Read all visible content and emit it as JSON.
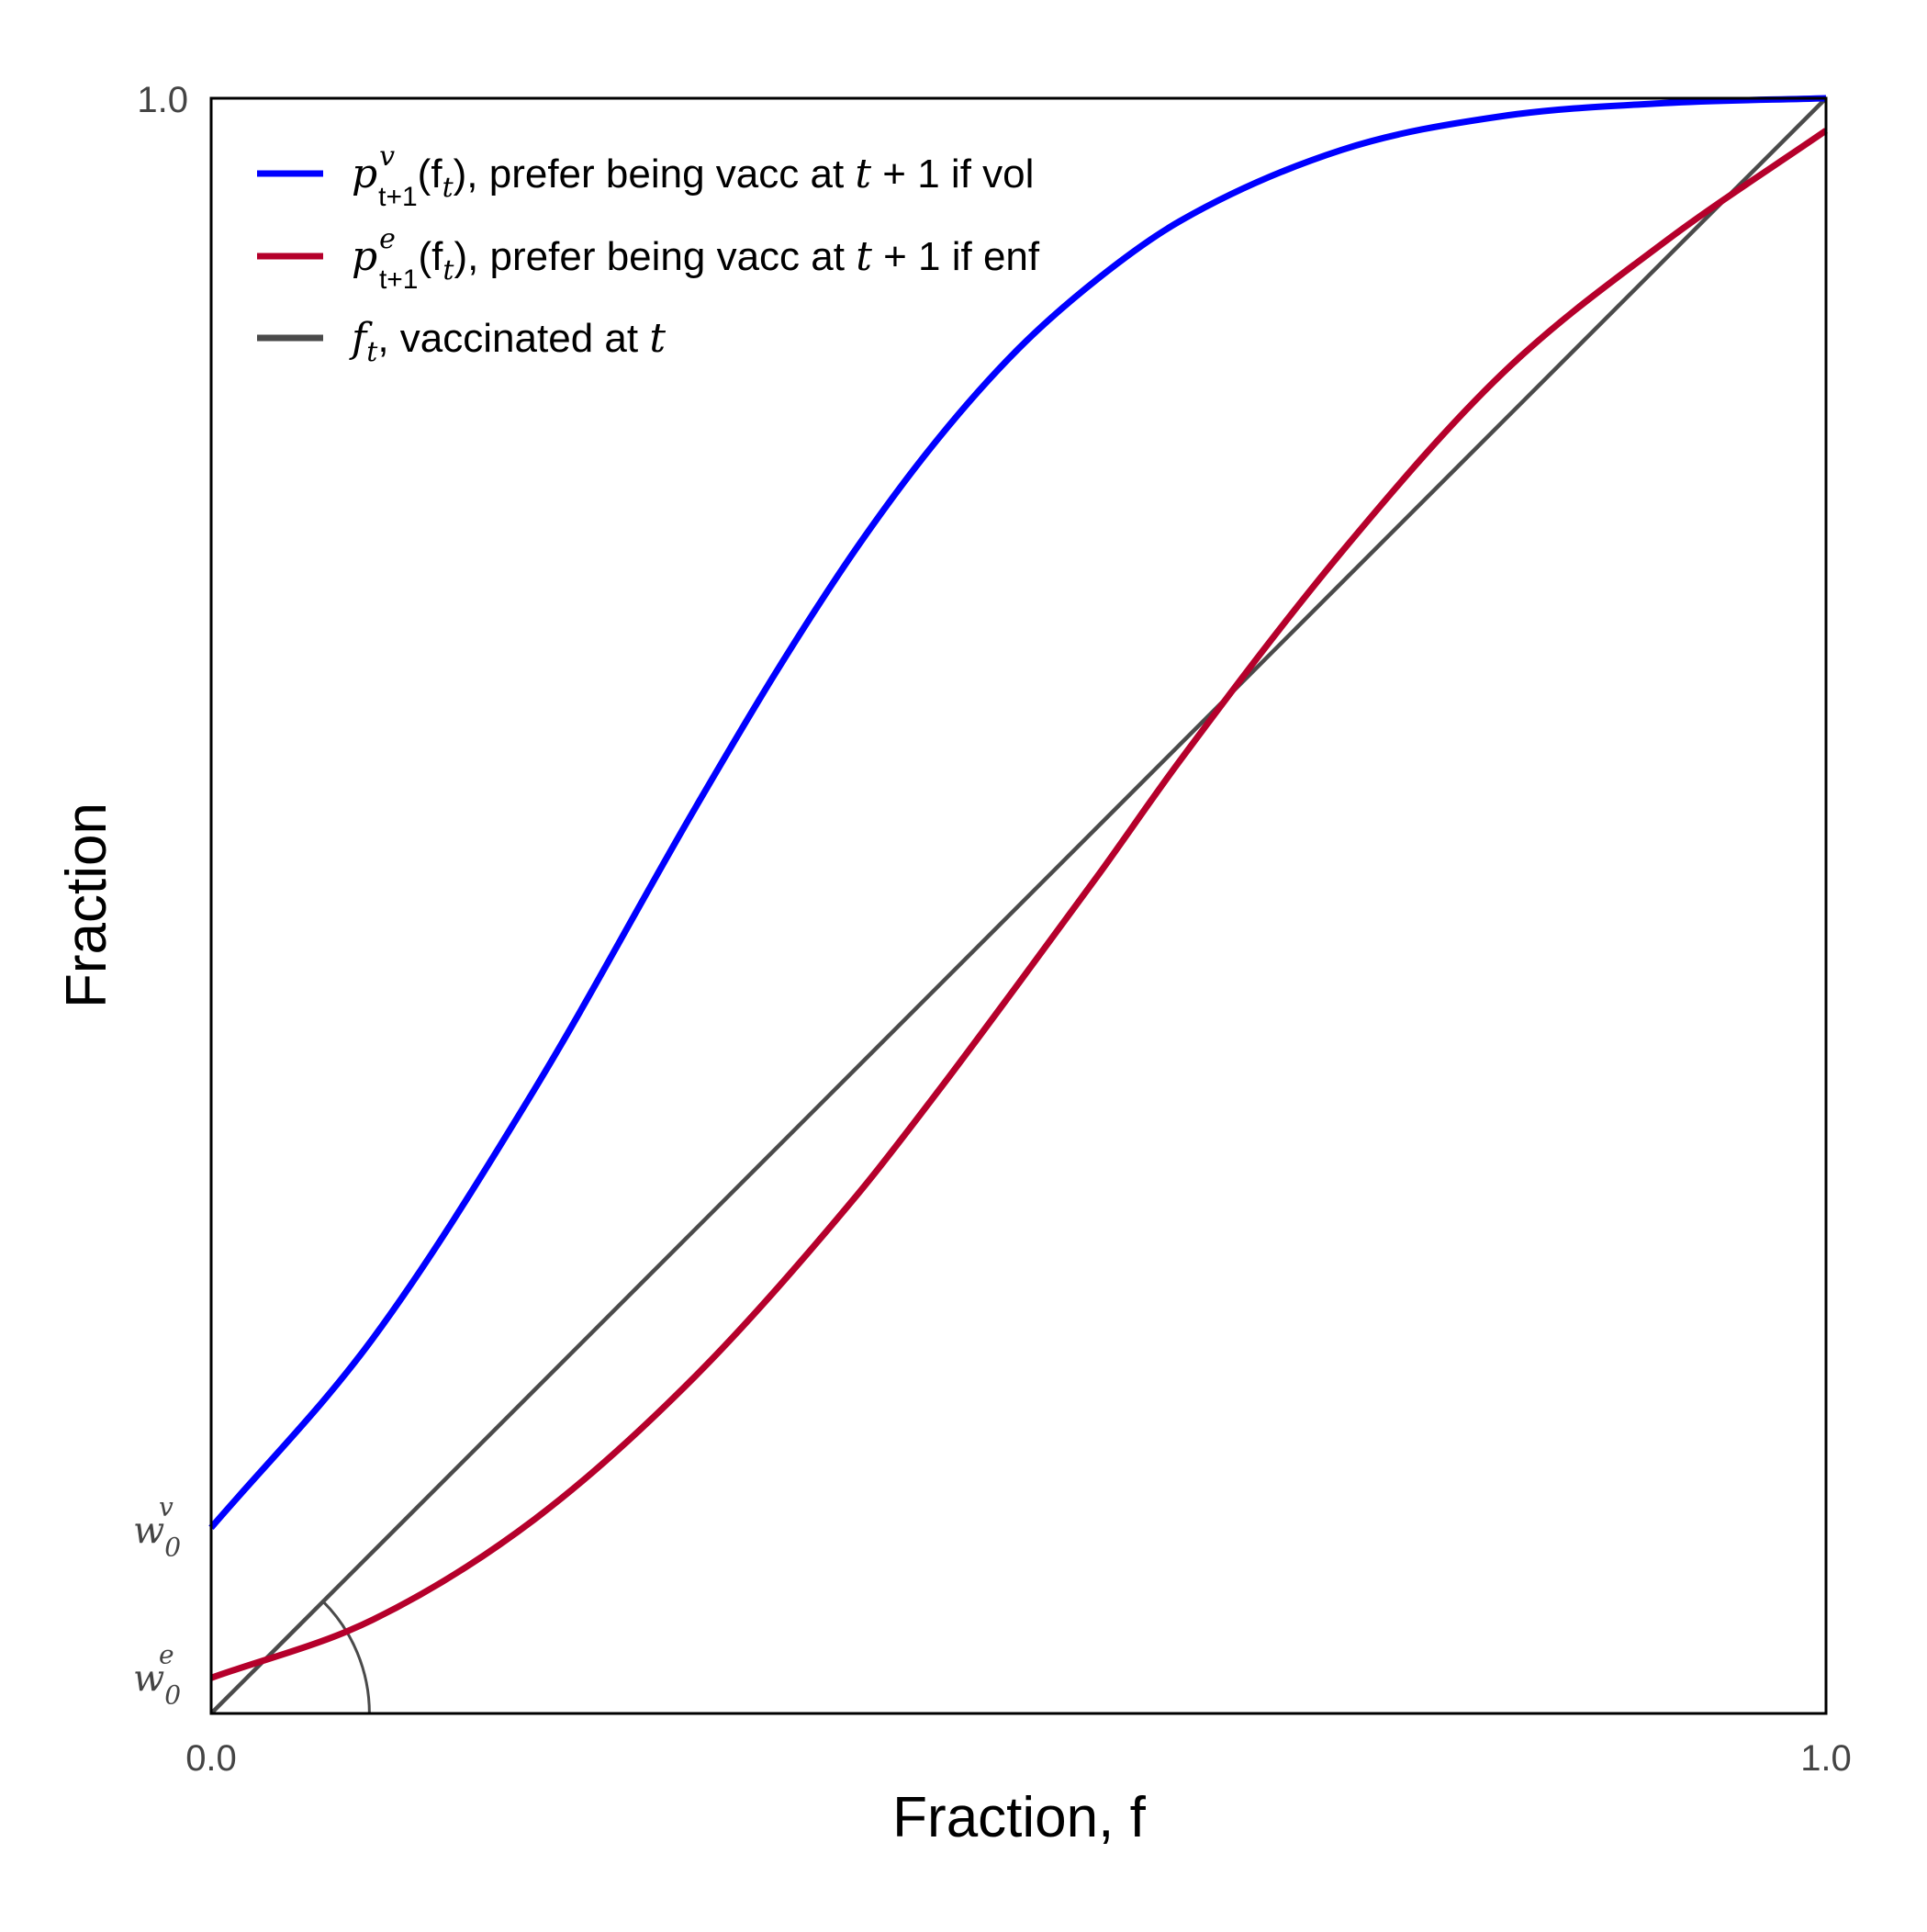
{
  "chart_data": {
    "type": "line",
    "xlabel": "Fraction, f",
    "ylabel": "Fraction",
    "xlim": [
      0.0,
      1.0
    ],
    "ylim": [
      0.0,
      1.0
    ],
    "grid": false,
    "legend_position": "top-left",
    "x_ticks": [
      "0.0",
      "1.0"
    ],
    "y_ticks": [
      "1.0"
    ],
    "y_annotations": [
      {
        "label": "w",
        "sub": "0",
        "sup": "v",
        "value": 0.115
      },
      {
        "label": "w",
        "sub": "0",
        "sup": "e",
        "value": 0.022
      }
    ],
    "series": [
      {
        "id": "vol",
        "color": "#0000ff",
        "legend_symbol": "p",
        "legend_sup": "v",
        "legend_sub": "t+1",
        "legend_arg": "(f",
        "legend_arg_sub": "t",
        "legend_rest": "), prefer being vacc at ",
        "legend_t": "t",
        "legend_tail": " + 1 if vol",
        "x": [
          0.0,
          0.1,
          0.2,
          0.3,
          0.35,
          0.4,
          0.45,
          0.5,
          0.55,
          0.6,
          0.7,
          0.8,
          0.9,
          1.0
        ],
        "y": [
          0.115,
          0.232,
          0.386,
          0.561,
          0.645,
          0.722,
          0.789,
          0.845,
          0.889,
          0.924,
          0.968,
          0.989,
          0.997,
          1.0
        ]
      },
      {
        "id": "enf",
        "color": "#b5002b",
        "legend_symbol": "p",
        "legend_sup": "e",
        "legend_sub": "t+1",
        "legend_arg": "(f",
        "legend_arg_sub": "t",
        "legend_rest": "), prefer being vacc at ",
        "legend_t": "t",
        "legend_tail": " + 1 if enf",
        "x": [
          0.0,
          0.1,
          0.2,
          0.3,
          0.4,
          0.45,
          0.5,
          0.55,
          0.6,
          0.7,
          0.8,
          0.9,
          1.0
        ],
        "y": [
          0.022,
          0.058,
          0.12,
          0.209,
          0.321,
          0.385,
          0.452,
          0.52,
          0.59,
          0.719,
          0.83,
          0.911,
          0.98
        ]
      },
      {
        "id": "diag",
        "color": "#4a4a4a",
        "legend_symbol": "f",
        "legend_sub": "t",
        "legend_rest": ", vaccinated at ",
        "legend_t": "t",
        "x": [
          0.0,
          1.0
        ],
        "y": [
          0.0,
          1.0
        ]
      }
    ],
    "angle_arc": {
      "color": "#4a4a4a",
      "radius": 0.098,
      "from_deg": 0,
      "to_deg": 45
    }
  }
}
